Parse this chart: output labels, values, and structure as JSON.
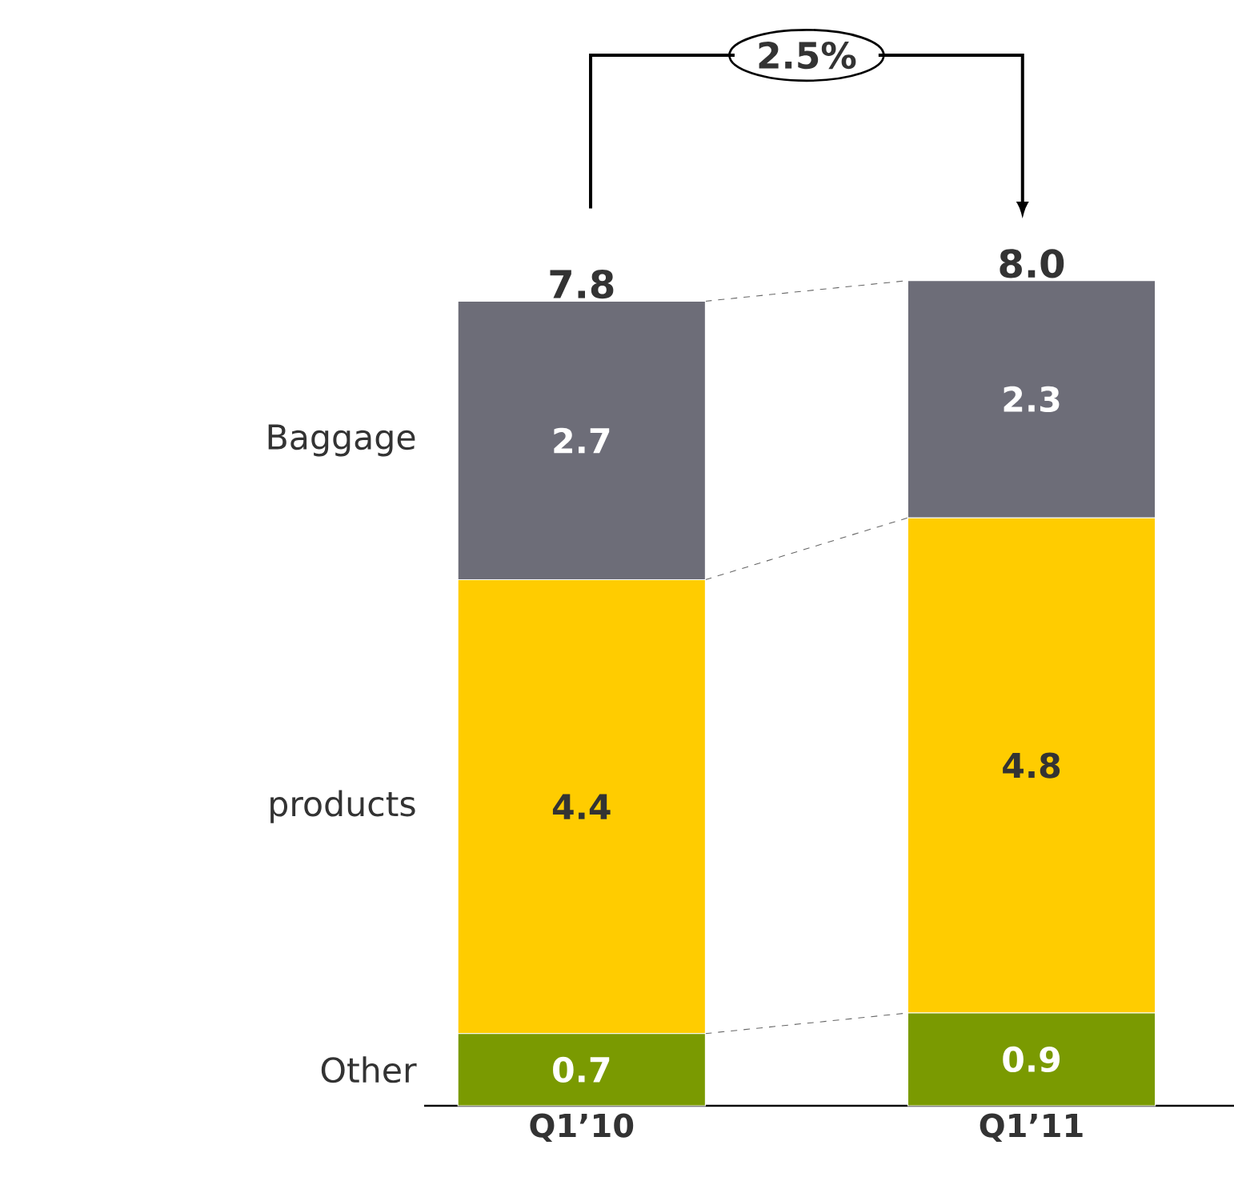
{
  "chart_data": {
    "type": "bar",
    "stacked": true,
    "categories": [
      "Q1’10",
      "Q1’11"
    ],
    "series": [
      {
        "name": "Other",
        "color": "#7a9a01",
        "values": [
          0.7,
          0.9
        ]
      },
      {
        "name": "products",
        "color": "#ffcc00",
        "values": [
          4.4,
          4.8
        ]
      },
      {
        "name": "Baggage",
        "color": "#6d6d78",
        "values": [
          2.7,
          2.3
        ]
      }
    ],
    "totals": [
      "7.8",
      "8.0"
    ],
    "data_labels": true,
    "annotations": [
      "2.5%"
    ]
  }
}
